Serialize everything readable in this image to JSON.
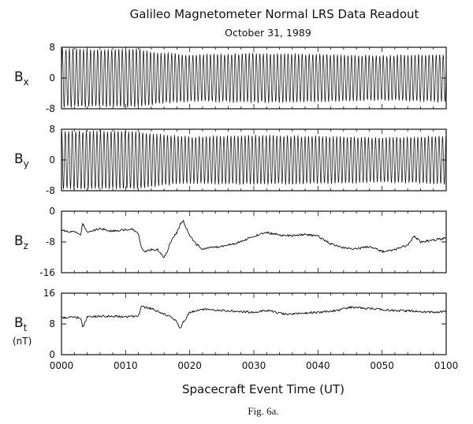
{
  "chart_data": {
    "type": "line",
    "title": "Galileo Magnetometer Normal LRS Data Readout",
    "subtitle": "October 31, 1989",
    "xlabel": "Spacecraft Event Time (UT)",
    "caption": "Fig. 6a.",
    "x_ticks": [
      "0000",
      "0010",
      "0020",
      "0030",
      "0040",
      "0050",
      "0100"
    ],
    "x_range_minutes": [
      0,
      60
    ],
    "panels": [
      {
        "id": "bx",
        "label_main": "B",
        "label_sub": "x",
        "unit": "",
        "ylim": [
          -8,
          8
        ],
        "yticks": [
          "8",
          "0",
          "-8"
        ],
        "ytick_values": [
          8,
          0,
          -8
        ],
        "style": "oscillation",
        "period_min": 0.55,
        "envelope_t": [
          0,
          12,
          14,
          16,
          20,
          30,
          40,
          50,
          60
        ],
        "envelope_amp": [
          7.8,
          7.8,
          7.2,
          6.8,
          6.3,
          6.6,
          6.4,
          6.0,
          6.5
        ]
      },
      {
        "id": "by",
        "label_main": "B",
        "label_sub": "y",
        "unit": "",
        "ylim": [
          -8,
          8
        ],
        "yticks": [
          "8",
          "0",
          "-8"
        ],
        "ytick_values": [
          8,
          0,
          -8
        ],
        "style": "oscillation",
        "period_min": 0.55,
        "envelope_t": [
          0,
          12,
          14,
          16,
          20,
          30,
          40,
          50,
          60
        ],
        "envelope_amp": [
          7.8,
          7.8,
          7.2,
          6.8,
          6.3,
          6.6,
          6.4,
          6.0,
          6.5
        ]
      },
      {
        "id": "bz",
        "label_main": "B",
        "label_sub": "z",
        "unit": "",
        "ylim": [
          -16,
          0
        ],
        "yticks": [
          "0",
          "-8",
          "-16"
        ],
        "ytick_values": [
          0,
          -8,
          -16
        ],
        "style": "trace",
        "t": [
          0,
          2,
          3,
          3.3,
          4,
          6,
          8,
          10,
          11,
          12,
          12.5,
          13,
          14,
          15,
          15.5,
          16,
          16.5,
          17,
          18,
          18.5,
          19,
          19.5,
          20,
          21,
          22,
          23,
          25,
          27,
          30,
          32,
          34,
          36,
          38,
          40,
          42,
          44,
          46,
          48,
          50,
          52,
          54,
          55,
          56,
          58,
          60
        ],
        "y": [
          -5,
          -5.5,
          -6,
          -3,
          -5.5,
          -4.5,
          -5.2,
          -4.8,
          -4.5,
          -6,
          -9.5,
          -10.5,
          -10,
          -10,
          -11,
          -12,
          -10.5,
          -8,
          -5.5,
          -3.5,
          -2.5,
          -4.5,
          -6.5,
          -8.5,
          -9.8,
          -9.5,
          -9.2,
          -8.5,
          -6.5,
          -5.5,
          -6.2,
          -6.4,
          -6,
          -6.5,
          -8.5,
          -9.5,
          -9.8,
          -9.2,
          -10.5,
          -10,
          -8.8,
          -6.5,
          -8,
          -7.5,
          -7
        ]
      },
      {
        "id": "bt",
        "label_main": "B",
        "label_sub": "t",
        "unit": "(nT)",
        "ylim": [
          0,
          16
        ],
        "yticks": [
          "16",
          "8",
          "0"
        ],
        "ytick_values": [
          16,
          8,
          0
        ],
        "style": "trace",
        "t": [
          0,
          2,
          3,
          3.3,
          4,
          6,
          8,
          10,
          12,
          12.5,
          14,
          16,
          17,
          18,
          18.5,
          19,
          20,
          22,
          25,
          30,
          32,
          35,
          40,
          43,
          45,
          48,
          50,
          52,
          55,
          58,
          60
        ],
        "y": [
          9.5,
          9.8,
          9.5,
          7,
          9.8,
          10,
          10,
          9.8,
          10,
          12.5,
          12,
          10.5,
          10,
          8.5,
          6.8,
          8.5,
          11,
          11.8,
          11.5,
          11,
          11.5,
          10.5,
          11,
          11.5,
          12.3,
          12,
          11.8,
          11.5,
          11.3,
          11,
          11.2
        ]
      }
    ]
  }
}
